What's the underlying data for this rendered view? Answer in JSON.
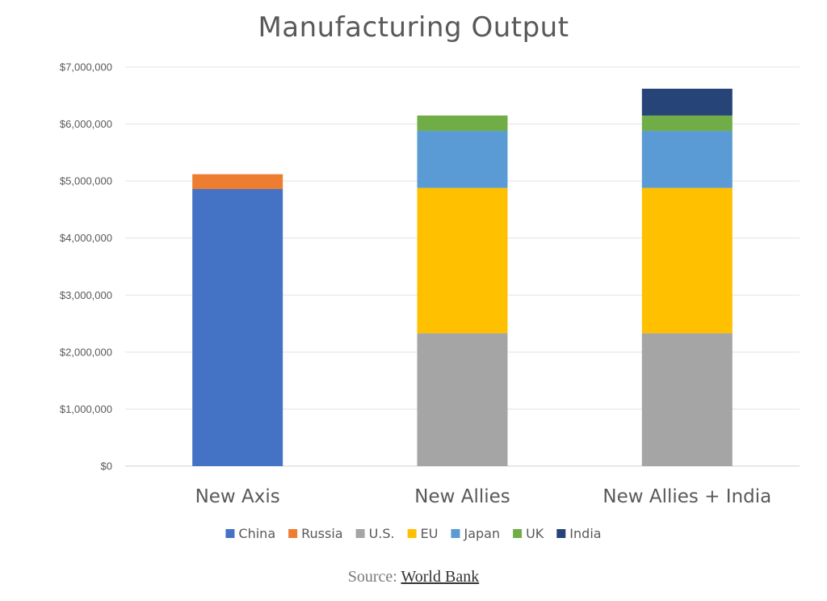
{
  "chart_data": {
    "type": "bar",
    "stacked": true,
    "title": "Manufacturing Output",
    "categories": [
      "New Axis",
      "New Allies",
      "New Allies + India"
    ],
    "series": [
      {
        "name": "China",
        "color": "#4472C4",
        "values": [
          4860000,
          0,
          0
        ]
      },
      {
        "name": "Russia",
        "color": "#ED7D31",
        "values": [
          260000,
          0,
          0
        ]
      },
      {
        "name": "U.S.",
        "color": "#A5A5A5",
        "values": [
          0,
          2330000,
          2330000
        ]
      },
      {
        "name": "EU",
        "color": "#FFC000",
        "values": [
          0,
          2550000,
          2550000
        ]
      },
      {
        "name": "Japan",
        "color": "#5B9BD5",
        "values": [
          0,
          1000000,
          1000000
        ]
      },
      {
        "name": "UK",
        "color": "#70AD47",
        "values": [
          0,
          270000,
          270000
        ]
      },
      {
        "name": "India",
        "color": "#264478",
        "values": [
          0,
          0,
          470000
        ]
      }
    ],
    "ylim": [
      0,
      7000000
    ],
    "yticks": [
      "$0",
      "$1,000,000",
      "$2,000,000",
      "$3,000,000",
      "$4,000,000",
      "$5,000,000",
      "$6,000,000",
      "$7,000,000"
    ],
    "grid": true,
    "legend": "bottom",
    "xlabel": "",
    "ylabel": ""
  },
  "source": {
    "prefix": "Source:",
    "link_text": "World Bank"
  }
}
